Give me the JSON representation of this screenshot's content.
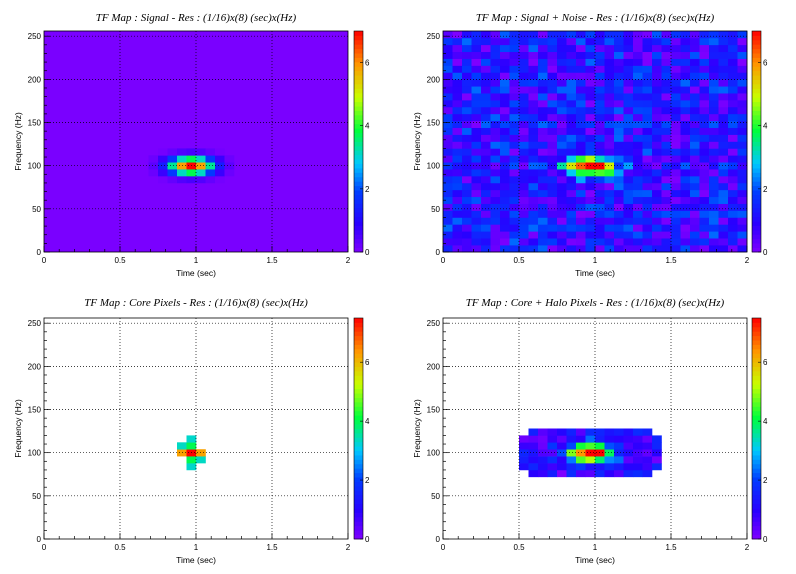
{
  "chart_data": [
    {
      "type": "heatmap",
      "id": "signal",
      "title": "TF Map : Signal - Res : (1/16)x(8) (sec)x(Hz)",
      "xlabel": "Time (sec)",
      "ylabel": "Frequency (Hz)",
      "xlim": [
        0,
        2
      ],
      "ylim": [
        0,
        256
      ],
      "x_ticks": [
        "0",
        "0.5",
        "1",
        "1.5",
        "2"
      ],
      "y_ticks": [
        "0",
        "50",
        "100",
        "150",
        "200",
        "250"
      ],
      "colorbar_range": [
        0,
        7
      ],
      "colorbar_ticks": [
        "0",
        "2",
        "4",
        "6"
      ],
      "background_value": 0.05,
      "grid": true,
      "peak": {
        "time": 1.0,
        "frequency": 100,
        "value": 7
      }
    },
    {
      "type": "heatmap",
      "id": "signal-noise",
      "title": "TF Map : Signal + Noise - Res : (1/16)x(8) (sec)x(Hz)",
      "xlabel": "Time (sec)",
      "ylabel": "Frequency (Hz)",
      "xlim": [
        0,
        2
      ],
      "ylim": [
        0,
        256
      ],
      "x_ticks": [
        "0",
        "0.5",
        "1",
        "1.5",
        "2"
      ],
      "y_ticks": [
        "0",
        "50",
        "100",
        "150",
        "200",
        "250"
      ],
      "colorbar_range": [
        0,
        7
      ],
      "colorbar_ticks": [
        "0",
        "2",
        "4",
        "6"
      ],
      "grid": true,
      "noise": true,
      "peak": {
        "time": 1.0,
        "frequency": 100,
        "value": 7
      }
    },
    {
      "type": "heatmap",
      "id": "core",
      "title": "TF Map : Core Pixels - Res : (1/16)x(8) (sec)x(Hz)",
      "xlabel": "Time (sec)",
      "ylabel": "Frequency (Hz)",
      "xlim": [
        0,
        2
      ],
      "ylim": [
        0,
        256
      ],
      "x_ticks": [
        "0",
        "0.5",
        "1",
        "1.5",
        "2"
      ],
      "y_ticks": [
        "0",
        "50",
        "100",
        "150",
        "200",
        "250"
      ],
      "colorbar_range": [
        0,
        7.5
      ],
      "colorbar_ticks": [
        "0",
        "2",
        "4",
        "6"
      ],
      "grid": true,
      "mask": "core",
      "peak": {
        "time": 1.0,
        "frequency": 100,
        "value": 7.5
      }
    },
    {
      "type": "heatmap",
      "id": "halo",
      "title": "TF Map : Core + Halo Pixels - Res : (1/16)x(8) (sec)x(Hz)",
      "xlabel": "Time (sec)",
      "ylabel": "Frequency (Hz)",
      "xlim": [
        0,
        2
      ],
      "ylim": [
        0,
        256
      ],
      "x_ticks": [
        "0",
        "0.5",
        "1",
        "1.5",
        "2"
      ],
      "y_ticks": [
        "0",
        "50",
        "100",
        "150",
        "200",
        "250"
      ],
      "colorbar_range": [
        0,
        7.5
      ],
      "colorbar_ticks": [
        "0",
        "2",
        "4",
        "6"
      ],
      "grid": true,
      "mask": "halo",
      "peak": {
        "time": 1.0,
        "frequency": 100,
        "value": 7.5
      }
    }
  ]
}
